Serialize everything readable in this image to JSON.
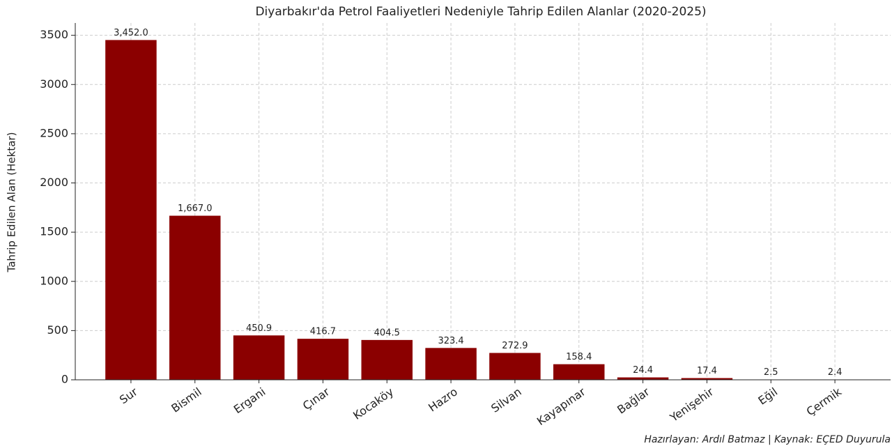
{
  "chart_data": {
    "type": "bar",
    "title": "Diyarbakır'da Petrol Faaliyetleri Nedeniyle Tahrip Edilen Alanlar (2020-2025)",
    "y_label": "Tahrip Edilen Alan (Hektar)",
    "source": "Hazırlayan: Ardıl Batmaz | Kaynak: EÇED Duyurula",
    "categories": [
      "Sur",
      "Bismil",
      "Ergani",
      "Çınar",
      "Kocaköy",
      "Hazro",
      "Silvan",
      "Kayapınar",
      "Bağlar",
      "Yenişehir",
      "Eğil",
      "Çermik"
    ],
    "values": [
      3452,
      1667,
      450.9,
      416.7,
      404.5,
      323.4,
      272.9,
      158.4,
      24.4,
      17.4,
      2.5,
      2.4
    ],
    "value_labels": [
      "3,452.0",
      "1,667.0",
      "450.9",
      "416.7",
      "404.5",
      "323.4",
      "272.9",
      "158.4",
      "24.4",
      "17.4",
      "2.5",
      "2.4"
    ],
    "color": "#8b0000",
    "ylim": [
      0,
      3625
    ],
    "yticks": [
      0,
      500,
      1000,
      1500,
      2000,
      2500,
      3000,
      3500
    ],
    "grid": true
  }
}
